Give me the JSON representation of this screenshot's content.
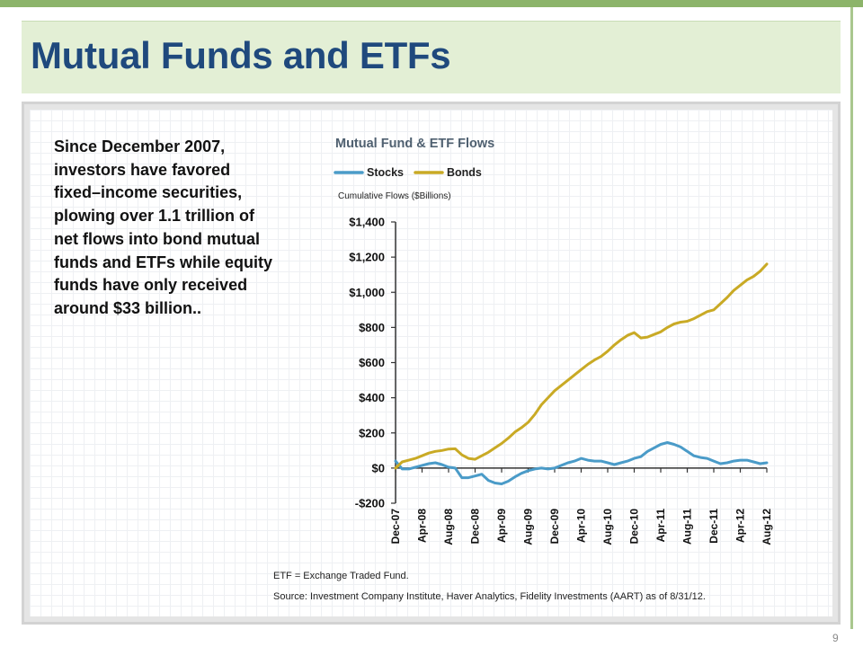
{
  "slide": {
    "title": "Mutual Funds and ETFs",
    "summary": "Since December 2007, investors have favored fixed–income securities, plowing over 1.1 trillion of net flows into bond mutual funds and ETFs while equity funds have only received around $33 billion..",
    "page_number": "9"
  },
  "chart_data": {
    "type": "line",
    "title": "Mutual Fund & ETF Flows",
    "subtitle": "Cumulative Flows ($Billions)",
    "legend_position": "top-left",
    "grid": false,
    "x_tick_labels": [
      "Dec-07",
      "Apr-08",
      "Aug-08",
      "Dec-08",
      "Apr-09",
      "Aug-09",
      "Dec-09",
      "Apr-10",
      "Aug-10",
      "Dec-10",
      "Apr-11",
      "Aug-11",
      "Dec-11",
      "Apr-12",
      "Aug-12"
    ],
    "y_tick_labels": [
      "$1,400",
      "$1,200",
      "$1,000",
      "$800",
      "$600",
      "$400",
      "$200",
      "$0",
      "-$200"
    ],
    "y_ticks": [
      1400,
      1200,
      1000,
      800,
      600,
      400,
      200,
      0,
      -200
    ],
    "ylim": [
      -200,
      1400
    ],
    "x": [
      "Dec-07",
      "Jan-08",
      "Feb-08",
      "Mar-08",
      "Apr-08",
      "May-08",
      "Jun-08",
      "Jul-08",
      "Aug-08",
      "Sep-08",
      "Oct-08",
      "Nov-08",
      "Dec-08",
      "Jan-09",
      "Feb-09",
      "Mar-09",
      "Apr-09",
      "May-09",
      "Jun-09",
      "Jul-09",
      "Aug-09",
      "Sep-09",
      "Oct-09",
      "Nov-09",
      "Dec-09",
      "Jan-10",
      "Feb-10",
      "Mar-10",
      "Apr-10",
      "May-10",
      "Jun-10",
      "Jul-10",
      "Aug-10",
      "Sep-10",
      "Oct-10",
      "Nov-10",
      "Dec-10",
      "Jan-11",
      "Feb-11",
      "Mar-11",
      "Apr-11",
      "May-11",
      "Jun-11",
      "Jul-11",
      "Aug-11",
      "Sep-11",
      "Oct-11",
      "Nov-11",
      "Dec-11",
      "Jan-12",
      "Feb-12",
      "Mar-12",
      "Apr-12",
      "May-12",
      "Jun-12",
      "Jul-12",
      "Aug-12"
    ],
    "series": [
      {
        "name": "Stocks",
        "color": "#4a9bc8",
        "values": [
          40,
          -5,
          -5,
          5,
          15,
          25,
          30,
          20,
          5,
          0,
          -55,
          -55,
          -45,
          -35,
          -70,
          -85,
          -90,
          -75,
          -50,
          -30,
          -15,
          -5,
          0,
          -5,
          0,
          15,
          30,
          40,
          55,
          45,
          40,
          40,
          30,
          20,
          30,
          40,
          55,
          65,
          95,
          115,
          135,
          145,
          135,
          120,
          95,
          70,
          60,
          55,
          40,
          25,
          30,
          40,
          45,
          45,
          35,
          25,
          30
        ]
      },
      {
        "name": "Bonds",
        "color": "#c9aa25",
        "values": [
          0,
          35,
          45,
          55,
          70,
          85,
          95,
          100,
          108,
          110,
          75,
          55,
          50,
          70,
          90,
          115,
          140,
          170,
          205,
          230,
          260,
          305,
          360,
          400,
          440,
          470,
          500,
          530,
          560,
          590,
          615,
          635,
          665,
          700,
          730,
          755,
          770,
          740,
          745,
          760,
          775,
          800,
          820,
          830,
          835,
          850,
          870,
          890,
          900,
          935,
          970,
          1010,
          1040,
          1070,
          1090,
          1120,
          1160
        ]
      }
    ]
  },
  "chart_notes": {
    "etf_note": "ETF = Exchange  Traded Fund.",
    "source": "Source: Investment Company Institute, Haver Analytics, Fidelity Investments (AART) as of 8/31/12."
  }
}
